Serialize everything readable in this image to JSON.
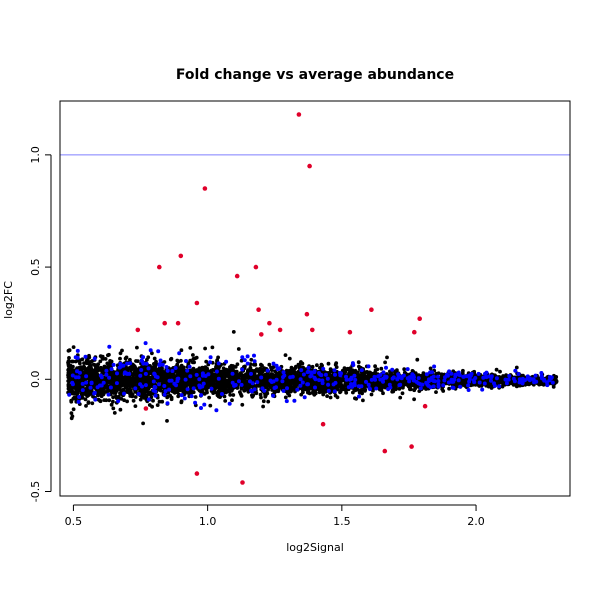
{
  "chart_data": {
    "type": "scatter",
    "title": "Fold change vs average abundance",
    "xlabel": "log2Signal",
    "ylabel": "log2FC",
    "xlim": [
      0.45,
      2.35
    ],
    "ylim": [
      -0.52,
      1.24
    ],
    "x_ticks": [
      0.5,
      1.0,
      1.5,
      2.0
    ],
    "x_tick_labels": [
      "0.5",
      "1.0",
      "1.5",
      "2.0"
    ],
    "y_ticks": [
      -0.5,
      0.0,
      0.5,
      1.0
    ],
    "y_tick_labels": [
      "-0.5",
      "0.0",
      "0.5",
      "1.0"
    ],
    "reference_line": {
      "y": 1.0,
      "color": "#7f7fff"
    },
    "grid": false,
    "legend": "none",
    "colors": {
      "background_points": "#000000",
      "highlighted": "#0000ff",
      "significant": "#e0002a"
    },
    "series": [
      {
        "color": "#e0002a",
        "points": [
          [
            1.34,
            1.18
          ],
          [
            1.38,
            0.95
          ],
          [
            0.99,
            0.85
          ],
          [
            0.9,
            0.55
          ],
          [
            0.82,
            0.5
          ],
          [
            1.18,
            0.5
          ],
          [
            1.11,
            0.46
          ],
          [
            0.96,
            0.34
          ],
          [
            1.19,
            0.31
          ],
          [
            1.61,
            0.31
          ],
          [
            1.37,
            0.29
          ],
          [
            1.79,
            0.27
          ],
          [
            0.84,
            0.25
          ],
          [
            0.89,
            0.25
          ],
          [
            1.23,
            0.25
          ],
          [
            1.27,
            0.22
          ],
          [
            1.39,
            0.22
          ],
          [
            0.74,
            0.22
          ],
          [
            1.53,
            0.21
          ],
          [
            1.77,
            0.21
          ],
          [
            1.2,
            0.2
          ],
          [
            0.96,
            -0.42
          ],
          [
            1.13,
            -0.46
          ],
          [
            1.66,
            -0.32
          ],
          [
            1.76,
            -0.3
          ],
          [
            1.43,
            -0.2
          ],
          [
            0.77,
            -0.13
          ],
          [
            1.81,
            -0.12
          ]
        ]
      }
    ],
    "density_band": {
      "x_range": [
        0.48,
        2.3
      ],
      "point_count": 5000
    }
  }
}
